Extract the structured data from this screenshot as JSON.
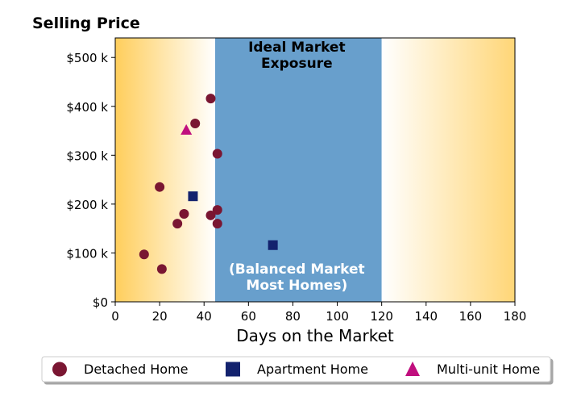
{
  "chart_data": {
    "type": "scatter",
    "title": "Selling Price",
    "xlabel": "Days on the Market",
    "ylabel": "",
    "xlim": [
      0,
      180
    ],
    "ylim": [
      0,
      540000
    ],
    "xticks": [
      {
        "value": 0,
        "label": "0"
      },
      {
        "value": 20,
        "label": "20"
      },
      {
        "value": 40,
        "label": "40"
      },
      {
        "value": 60,
        "label": "60"
      },
      {
        "value": 80,
        "label": "80"
      },
      {
        "value": 100,
        "label": "100"
      },
      {
        "value": 120,
        "label": "120"
      },
      {
        "value": 140,
        "label": "140"
      },
      {
        "value": 160,
        "label": "160"
      },
      {
        "value": 180,
        "label": "180"
      }
    ],
    "yticks": [
      {
        "value": 0,
        "label": "$0"
      },
      {
        "value": 100000,
        "label": "$100 k"
      },
      {
        "value": 200000,
        "label": "$200 k"
      },
      {
        "value": 300000,
        "label": "$300 k"
      },
      {
        "value": 400000,
        "label": "$400 k"
      },
      {
        "value": 500000,
        "label": "$500 k"
      }
    ],
    "regions": [
      {
        "kind": "gradient",
        "from": 0,
        "to": 45,
        "color_edge": "#FFCE5C",
        "color_inner": "#FFFFFF"
      },
      {
        "kind": "band",
        "from": 45,
        "to": 120,
        "color": "#689FCC",
        "top_label": "Ideal Market\nExposure",
        "bottom_label": "(Balanced Market\nMost Homes)"
      },
      {
        "kind": "gradient",
        "from": 120,
        "to": 180,
        "color_edge": "#FFD677",
        "color_inner": "#FFFFFF"
      }
    ],
    "series": [
      {
        "name": "Detached Home",
        "marker": "circle",
        "color": "#7A1632",
        "points": [
          [
            13,
            97000
          ],
          [
            20,
            235000
          ],
          [
            21,
            67000
          ],
          [
            28,
            160000
          ],
          [
            31,
            180000
          ],
          [
            36,
            365000
          ],
          [
            43,
            416000
          ],
          [
            43,
            177000
          ],
          [
            46,
            303000
          ],
          [
            46,
            188000
          ],
          [
            46,
            160000
          ]
        ]
      },
      {
        "name": "Apartment Home",
        "marker": "square",
        "color": "#13226E",
        "points": [
          [
            35,
            216000
          ],
          [
            71,
            116000
          ]
        ]
      },
      {
        "name": "Multi-unit Home",
        "marker": "triangle",
        "color": "#C00F7E",
        "points": [
          [
            32,
            352000
          ]
        ]
      }
    ],
    "grid": false,
    "legend": "bottom"
  }
}
